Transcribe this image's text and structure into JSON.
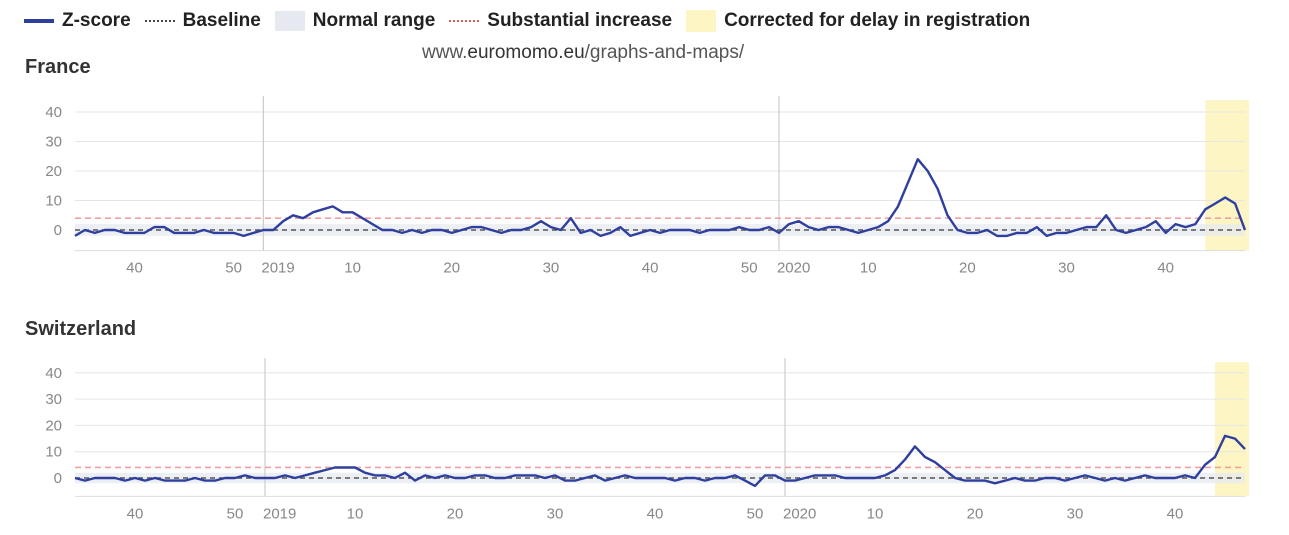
{
  "legend": [
    {
      "label": "Z-score",
      "swatch": "line",
      "color": "#2f3f9e"
    },
    {
      "label": "Baseline",
      "swatch": "dotted",
      "color": "#444444"
    },
    {
      "label": "Normal range",
      "swatch": "box",
      "color": "#e6e9ef"
    },
    {
      "label": "Substantial increase",
      "swatch": "dotted",
      "color": "#e35a5a"
    },
    {
      "label": "Corrected for delay in registration",
      "swatch": "box",
      "color": "#fdf5c4"
    }
  ],
  "source": {
    "prefix": "www.",
    "domain": "euromomo.eu",
    "path": "/graphs-and-maps/"
  },
  "colors": {
    "zscore": "#2f3f9e",
    "baseline": "#555555",
    "threshold": "#f0a0a0",
    "normal_range": "#e6e9ef",
    "corrected": "#fdf5c4",
    "grid": "#e6e6e6",
    "year_line": "#cccccc"
  },
  "chart_data": [
    {
      "type": "line",
      "title": "France",
      "series_name": "Z-score",
      "x_axis": {
        "kind": "iso-week",
        "start": "2018-W34",
        "ticks": [
          {
            "week": "2018-W40",
            "label": "40"
          },
          {
            "week": "2018-W50",
            "label": "50"
          },
          {
            "week": "2019-W01",
            "label": "2019"
          },
          {
            "week": "2019-W10",
            "label": "10"
          },
          {
            "week": "2019-W20",
            "label": "20"
          },
          {
            "week": "2019-W30",
            "label": "30"
          },
          {
            "week": "2019-W40",
            "label": "40"
          },
          {
            "week": "2019-W50",
            "label": "50"
          },
          {
            "week": "2020-W01",
            "label": "2020"
          },
          {
            "week": "2020-W10",
            "label": "10"
          },
          {
            "week": "2020-W20",
            "label": "20"
          },
          {
            "week": "2020-W30",
            "label": "30"
          },
          {
            "week": "2020-W40",
            "label": "40"
          }
        ],
        "year_lines": [
          "2019-W01",
          "2020-W01"
        ]
      },
      "y_ticks": [
        0,
        10,
        20,
        30,
        40
      ],
      "ylim": [
        -7,
        44
      ],
      "baseline": 0,
      "normal_range": [
        -2,
        2
      ],
      "substantial_increase": 4,
      "corrected_from_week": "2020-W44",
      "values": [
        -2,
        0,
        -1,
        0,
        0,
        -1,
        -1,
        -1,
        1,
        1,
        -1,
        -1,
        -1,
        0,
        -1,
        -1,
        -1,
        -2,
        -1,
        0,
        0,
        3,
        5,
        4,
        6,
        7,
        8,
        6,
        6,
        4,
        2,
        0,
        0,
        -1,
        0,
        -1,
        0,
        0,
        -1,
        0,
        1,
        1,
        0,
        -1,
        0,
        0,
        1,
        3,
        1,
        0,
        4,
        -1,
        0,
        -2,
        -1,
        1,
        -2,
        -1,
        0,
        -1,
        0,
        0,
        0,
        -1,
        0,
        0,
        0,
        1,
        0,
        0,
        1,
        -1,
        2,
        3,
        1,
        0,
        1,
        1,
        0,
        -1,
        0,
        1,
        3,
        8,
        16,
        24,
        20,
        14,
        5,
        0,
        -1,
        -1,
        0,
        -2,
        -2,
        -1,
        -1,
        1,
        -2,
        -1,
        -1,
        0,
        1,
        1,
        5,
        0,
        -1,
        0,
        1,
        3,
        -1,
        2,
        1,
        2,
        7,
        9,
        11,
        9,
        0
      ]
    },
    {
      "type": "line",
      "title": "Switzerland",
      "series_name": "Z-score",
      "x_axis": {
        "kind": "iso-week",
        "start": "2018-W34",
        "ticks": [
          {
            "week": "2018-W40",
            "label": "40"
          },
          {
            "week": "2018-W50",
            "label": "50"
          },
          {
            "week": "2019-W01",
            "label": "2019"
          },
          {
            "week": "2019-W10",
            "label": "10"
          },
          {
            "week": "2019-W20",
            "label": "20"
          },
          {
            "week": "2019-W30",
            "label": "30"
          },
          {
            "week": "2019-W40",
            "label": "40"
          },
          {
            "week": "2019-W50",
            "label": "50"
          },
          {
            "week": "2020-W01",
            "label": "2020"
          },
          {
            "week": "2020-W10",
            "label": "10"
          },
          {
            "week": "2020-W20",
            "label": "20"
          },
          {
            "week": "2020-W30",
            "label": "30"
          },
          {
            "week": "2020-W40",
            "label": "40"
          }
        ],
        "year_lines": [
          "2019-W01",
          "2020-W01"
        ]
      },
      "y_ticks": [
        0,
        10,
        20,
        30,
        40
      ],
      "ylim": [
        -7,
        44
      ],
      "baseline": 0,
      "normal_range": [
        -2,
        2
      ],
      "substantial_increase": 4,
      "corrected_from_week": "2020-W44",
      "values": [
        0,
        -1,
        0,
        0,
        0,
        -1,
        0,
        -1,
        0,
        -1,
        -1,
        -1,
        0,
        -1,
        -1,
        0,
        0,
        1,
        0,
        0,
        0,
        1,
        0,
        1,
        2,
        3,
        4,
        4,
        4,
        2,
        1,
        1,
        0,
        2,
        -1,
        1,
        0,
        1,
        0,
        0,
        1,
        1,
        0,
        0,
        1,
        1,
        1,
        0,
        1,
        -1,
        -1,
        0,
        1,
        -1,
        0,
        1,
        0,
        0,
        0,
        0,
        -1,
        0,
        0,
        -1,
        0,
        0,
        1,
        -1,
        -3,
        1,
        1,
        -1,
        -1,
        0,
        1,
        1,
        1,
        0,
        0,
        0,
        0,
        1,
        3,
        7,
        12,
        8,
        6,
        3,
        0,
        -1,
        -1,
        -1,
        -2,
        -1,
        0,
        -1,
        -1,
        0,
        0,
        -1,
        0,
        1,
        0,
        -1,
        0,
        -1,
        0,
        1,
        0,
        0,
        0,
        1,
        0,
        5,
        8,
        16,
        15,
        11
      ]
    }
  ]
}
